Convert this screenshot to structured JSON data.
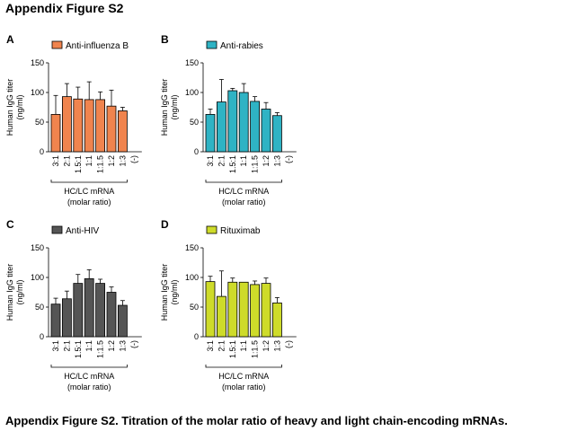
{
  "page_title": "Appendix Figure S2",
  "caption": "Appendix Figure S2. Titration of the molar ratio of heavy and light chain-encoding mRNAs.",
  "chart_data": [
    {
      "panel": "A",
      "type": "bar",
      "legend": "Anti-influenza B",
      "color": "#f0844e",
      "ylabel": [
        "Human IgG titer",
        "(ng/ml)"
      ],
      "xlabel": [
        "HC/LC mRNA",
        "(molar ratio)"
      ],
      "ylim": [
        0,
        150
      ],
      "yticks": [
        0,
        50,
        100,
        150
      ],
      "categories": [
        "3:1",
        "2:1",
        "1.5:1",
        "1:1",
        "1:1.5",
        "1:2",
        "1:3",
        "(-)"
      ],
      "values": [
        63,
        93,
        89,
        88,
        88,
        77,
        69,
        0
      ],
      "errors": [
        32,
        22,
        20,
        30,
        13,
        27,
        6,
        0
      ]
    },
    {
      "panel": "B",
      "type": "bar",
      "legend": "Anti-rabies",
      "color": "#2fb3c4",
      "ylabel": [
        "Human IgG titer",
        "(ng/ml)"
      ],
      "xlabel": [
        "HC/LC mRNA",
        "(molar ratio)"
      ],
      "ylim": [
        0,
        150
      ],
      "yticks": [
        0,
        50,
        100,
        150
      ],
      "categories": [
        "3:1",
        "2:1",
        "1.5:1",
        "1:1",
        "1:1.5",
        "1:2",
        "1:3",
        "(-)"
      ],
      "values": [
        63,
        84,
        103,
        100,
        85,
        72,
        61,
        0
      ],
      "errors": [
        9,
        38,
        4,
        15,
        8,
        11,
        5,
        0
      ]
    },
    {
      "panel": "C",
      "type": "bar",
      "legend": "Anti-HIV",
      "color": "#555555",
      "ylabel": [
        "Human IgG titer",
        "(ng/ml)"
      ],
      "xlabel": [
        "HC/LC mRNA",
        "(molar ratio)"
      ],
      "ylim": [
        0,
        150
      ],
      "yticks": [
        0,
        50,
        100,
        150
      ],
      "categories": [
        "3:1",
        "2:1",
        "1.5:1",
        "1:1",
        "1:1.5",
        "1:2",
        "1:3",
        "(-)"
      ],
      "values": [
        55,
        64,
        90,
        98,
        90,
        75,
        53,
        0
      ],
      "errors": [
        10,
        13,
        15,
        15,
        7,
        9,
        8,
        0
      ]
    },
    {
      "panel": "D",
      "type": "bar",
      "legend": "Rituximab",
      "color": "#cedb2a",
      "ylabel": [
        "Human IgG titer",
        "(ng/ml)"
      ],
      "xlabel": [
        "HC/LC mRNA",
        "(molar ratio)"
      ],
      "ylim": [
        0,
        150
      ],
      "yticks": [
        0,
        50,
        100,
        150
      ],
      "categories": [
        "3:1",
        "2:1",
        "1.5:1",
        "1:1",
        "1:1.5",
        "1:2",
        "1:3",
        "(-)"
      ],
      "values": [
        93,
        68,
        92,
        92,
        88,
        90,
        57,
        0
      ],
      "errors": [
        9,
        43,
        7,
        0,
        6,
        9,
        9,
        0
      ]
    }
  ]
}
